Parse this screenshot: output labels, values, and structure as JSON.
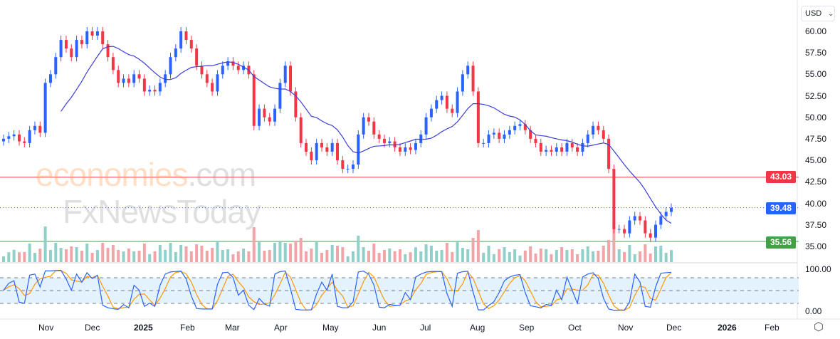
{
  "currency_selector": {
    "value": "USD",
    "icon": "chevron-down-icon"
  },
  "watermark": {
    "line1": "economies",
    "line1_suffix": ".com",
    "line2": "FxNewsToday"
  },
  "colors": {
    "up": "#2962ff",
    "down": "#f23645",
    "ma": "#3b3fd8",
    "resistance": "#f23645",
    "support": "#43a047",
    "last": "#2962ff",
    "vol_up": "#8fd0c8",
    "vol_down": "#f2a4a8",
    "stoch_k": "#2962ff",
    "stoch_d": "#ff9800",
    "band": "#e3f2fd"
  },
  "price_axis": {
    "ticks": [
      "60.00",
      "57.50",
      "55.00",
      "52.50",
      "50.00",
      "47.50",
      "45.00",
      "42.50",
      "40.00",
      "37.50",
      "35.00"
    ]
  },
  "levels": {
    "resistance": "43.03",
    "last": "39.48",
    "support": "35.56"
  },
  "stoch_axis": {
    "ticks": [
      "100.00",
      "0.00"
    ]
  },
  "time_axis": {
    "ticks": [
      "Nov",
      "Dec",
      "2025",
      "Feb",
      "Mar",
      "Apr",
      "May",
      "Jun",
      "Jul",
      "Aug",
      "Sep",
      "Oct",
      "Nov",
      "Dec",
      "2026",
      "Feb"
    ]
  },
  "settings_icon": "settings-hexagon-icon",
  "chart_data": {
    "type": "candlestick",
    "ylim": [
      34.5,
      61
    ],
    "closes": [
      47.5,
      47.8,
      48,
      47.2,
      47,
      48.5,
      49,
      48.2,
      54,
      55,
      57,
      59,
      58,
      57,
      59,
      58.5,
      60,
      59.5,
      60,
      58.5,
      57,
      55.5,
      54,
      54.5,
      54,
      55,
      54.5,
      53,
      53.2,
      53,
      54,
      55,
      57,
      58,
      60,
      59,
      58,
      56,
      55,
      54,
      53,
      55,
      56,
      56.5,
      56,
      55.5,
      56,
      55,
      49,
      51,
      50,
      49.5,
      51,
      54,
      56,
      53,
      50,
      47,
      46,
      45,
      47,
      46.5,
      46,
      47,
      45,
      44,
      44,
      44.5,
      48,
      50,
      49.5,
      48,
      47.5,
      47,
      47.2,
      46.5,
      46,
      46.5,
      46.2,
      47,
      48,
      50,
      51,
      52,
      52.5,
      51,
      50.5,
      53,
      55,
      56,
      53,
      47,
      47,
      48,
      48.2,
      47.5,
      48,
      48.5,
      49,
      49.2,
      48.5,
      47.5,
      47,
      46,
      46.2,
      46,
      46.5,
      46,
      47,
      46.5,
      46,
      47,
      48,
      49,
      48.5,
      47.5,
      44,
      37,
      37,
      36.5,
      38,
      38.5,
      38,
      36.5,
      36,
      37.5,
      38.5,
      39,
      39.48
    ]
  }
}
